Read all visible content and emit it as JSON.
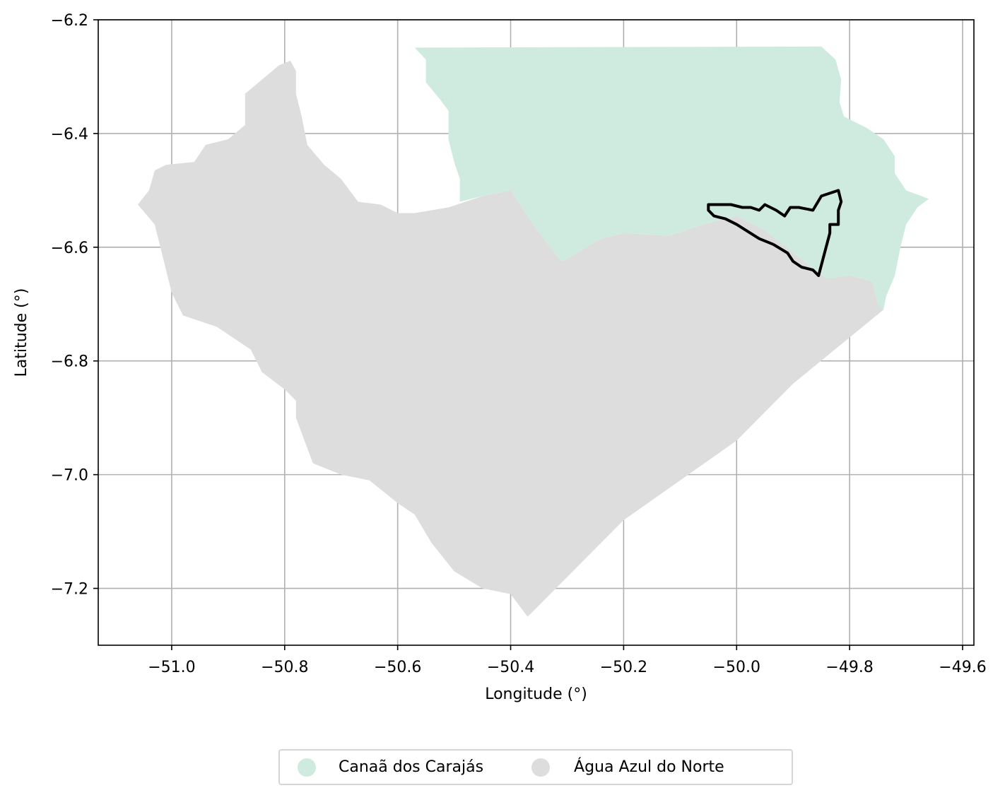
{
  "chart_data": {
    "type": "map",
    "title": "",
    "xlabel": "Longitude (°)",
    "ylabel": "Latitude (°)",
    "xlim": [
      -51.13,
      -49.58
    ],
    "ylim": [
      -7.3,
      -6.2
    ],
    "grid": true,
    "x_ticks": [
      {
        "value": -51.0,
        "label": "−51.0"
      },
      {
        "value": -50.8,
        "label": "−50.8"
      },
      {
        "value": -50.6,
        "label": "−50.6"
      },
      {
        "value": -50.4,
        "label": "−50.4"
      },
      {
        "value": -50.2,
        "label": "−50.2"
      },
      {
        "value": -50.0,
        "label": "−50.0"
      },
      {
        "value": -49.8,
        "label": "−49.8"
      },
      {
        "value": -49.6,
        "label": "−49.6"
      }
    ],
    "y_ticks": [
      {
        "value": -6.2,
        "label": "−6.2"
      },
      {
        "value": -6.4,
        "label": "−6.4"
      },
      {
        "value": -6.6,
        "label": "−6.6"
      },
      {
        "value": -6.8,
        "label": "−6.8"
      },
      {
        "value": -7.0,
        "label": "−7.0"
      },
      {
        "value": -7.2,
        "label": "−7.2"
      }
    ],
    "regions": [
      {
        "name": "Canaã dos Carajás",
        "color": "#cfebdf",
        "coords": [
          [
            -50.57,
            -6.249
          ],
          [
            -49.85,
            -6.247
          ],
          [
            -49.825,
            -6.27
          ],
          [
            -49.815,
            -6.305
          ],
          [
            -49.818,
            -6.345
          ],
          [
            -49.81,
            -6.37
          ],
          [
            -49.77,
            -6.39
          ],
          [
            -49.74,
            -6.41
          ],
          [
            -49.72,
            -6.44
          ],
          [
            -49.72,
            -6.47
          ],
          [
            -49.7,
            -6.5
          ],
          [
            -49.66,
            -6.515
          ],
          [
            -49.68,
            -6.53
          ],
          [
            -49.7,
            -6.56
          ],
          [
            -49.71,
            -6.6
          ],
          [
            -49.72,
            -6.65
          ],
          [
            -49.735,
            -6.685
          ],
          [
            -49.74,
            -6.71
          ],
          [
            -49.75,
            -6.7
          ],
          [
            -49.76,
            -6.66
          ],
          [
            -49.8,
            -6.65
          ],
          [
            -49.84,
            -6.655
          ],
          [
            -49.9,
            -6.61
          ],
          [
            -49.95,
            -6.57
          ],
          [
            -50.0,
            -6.545
          ],
          [
            -50.06,
            -6.56
          ],
          [
            -50.12,
            -6.58
          ],
          [
            -50.2,
            -6.575
          ],
          [
            -50.24,
            -6.585
          ],
          [
            -50.3,
            -6.62
          ],
          [
            -50.31,
            -6.625
          ],
          [
            -50.33,
            -6.6
          ],
          [
            -50.36,
            -6.56
          ],
          [
            -50.4,
            -6.5
          ],
          [
            -50.45,
            -6.51
          ],
          [
            -50.49,
            -6.52
          ],
          [
            -50.49,
            -6.48
          ],
          [
            -50.5,
            -6.45
          ],
          [
            -50.51,
            -6.41
          ],
          [
            -50.51,
            -6.36
          ],
          [
            -50.525,
            -6.34
          ],
          [
            -50.55,
            -6.31
          ],
          [
            -50.55,
            -6.27
          ]
        ]
      },
      {
        "name": "Água Azul do Norte",
        "color": "#dddddd",
        "coords": [
          [
            -51.06,
            -6.525
          ],
          [
            -51.04,
            -6.5
          ],
          [
            -51.03,
            -6.465
          ],
          [
            -51.01,
            -6.455
          ],
          [
            -50.96,
            -6.45
          ],
          [
            -50.94,
            -6.42
          ],
          [
            -50.9,
            -6.41
          ],
          [
            -50.87,
            -6.385
          ],
          [
            -50.87,
            -6.33
          ],
          [
            -50.84,
            -6.305
          ],
          [
            -50.81,
            -6.28
          ],
          [
            -50.79,
            -6.272
          ],
          [
            -50.78,
            -6.29
          ],
          [
            -50.78,
            -6.33
          ],
          [
            -50.77,
            -6.37
          ],
          [
            -50.76,
            -6.42
          ],
          [
            -50.73,
            -6.455
          ],
          [
            -50.7,
            -6.48
          ],
          [
            -50.67,
            -6.52
          ],
          [
            -50.63,
            -6.525
          ],
          [
            -50.6,
            -6.54
          ],
          [
            -50.57,
            -6.54
          ],
          [
            -50.51,
            -6.53
          ],
          [
            -50.45,
            -6.51
          ],
          [
            -50.4,
            -6.5
          ],
          [
            -50.36,
            -6.56
          ],
          [
            -50.33,
            -6.6
          ],
          [
            -50.31,
            -6.625
          ],
          [
            -50.3,
            -6.62
          ],
          [
            -50.24,
            -6.585
          ],
          [
            -50.2,
            -6.575
          ],
          [
            -50.12,
            -6.58
          ],
          [
            -50.06,
            -6.56
          ],
          [
            -50.0,
            -6.545
          ],
          [
            -49.95,
            -6.57
          ],
          [
            -49.9,
            -6.61
          ],
          [
            -49.84,
            -6.655
          ],
          [
            -49.8,
            -6.65
          ],
          [
            -49.76,
            -6.66
          ],
          [
            -49.75,
            -6.7
          ],
          [
            -49.74,
            -6.71
          ],
          [
            -49.9,
            -6.84
          ],
          [
            -50.0,
            -6.94
          ],
          [
            -50.2,
            -7.08
          ],
          [
            -50.37,
            -7.25
          ],
          [
            -50.4,
            -7.21
          ],
          [
            -50.45,
            -7.2
          ],
          [
            -50.5,
            -7.17
          ],
          [
            -50.54,
            -7.12
          ],
          [
            -50.57,
            -7.07
          ],
          [
            -50.6,
            -7.05
          ],
          [
            -50.65,
            -7.01
          ],
          [
            -50.7,
            -7.0
          ],
          [
            -50.75,
            -6.98
          ],
          [
            -50.78,
            -6.9
          ],
          [
            -50.78,
            -6.87
          ],
          [
            -50.8,
            -6.85
          ],
          [
            -50.84,
            -6.82
          ],
          [
            -50.86,
            -6.78
          ],
          [
            -50.92,
            -6.74
          ],
          [
            -50.98,
            -6.72
          ],
          [
            -51.0,
            -6.68
          ],
          [
            -51.02,
            -6.6
          ],
          [
            -51.03,
            -6.56
          ]
        ]
      }
    ],
    "outline": {
      "color": "#000000",
      "coords": [
        [
          -49.935,
          -6.595
        ],
        [
          -49.96,
          -6.585
        ],
        [
          -50.0,
          -6.56
        ],
        [
          -50.02,
          -6.55
        ],
        [
          -50.04,
          -6.545
        ],
        [
          -50.05,
          -6.535
        ],
        [
          -50.05,
          -6.525
        ],
        [
          -50.01,
          -6.525
        ],
        [
          -49.99,
          -6.53
        ],
        [
          -49.975,
          -6.53
        ],
        [
          -49.96,
          -6.535
        ],
        [
          -49.95,
          -6.525
        ],
        [
          -49.93,
          -6.535
        ],
        [
          -49.915,
          -6.545
        ],
        [
          -49.905,
          -6.53
        ],
        [
          -49.89,
          -6.53
        ],
        [
          -49.865,
          -6.535
        ],
        [
          -49.85,
          -6.51
        ],
        [
          -49.835,
          -6.505
        ],
        [
          -49.82,
          -6.5
        ],
        [
          -49.815,
          -6.52
        ],
        [
          -49.82,
          -6.535
        ],
        [
          -49.82,
          -6.56
        ],
        [
          -49.835,
          -6.56
        ],
        [
          -49.835,
          -6.575
        ],
        [
          -49.855,
          -6.65
        ],
        [
          -49.865,
          -6.64
        ],
        [
          -49.885,
          -6.635
        ],
        [
          -49.9,
          -6.625
        ],
        [
          -49.91,
          -6.61
        ],
        [
          -49.935,
          -6.595
        ]
      ]
    },
    "legend": {
      "placement": "bottom-center",
      "entries": [
        {
          "label": "Canaã dos Carajás",
          "color": "#cfebdf"
        },
        {
          "label": "Água Azul do Norte",
          "color": "#dddddd"
        }
      ]
    }
  }
}
